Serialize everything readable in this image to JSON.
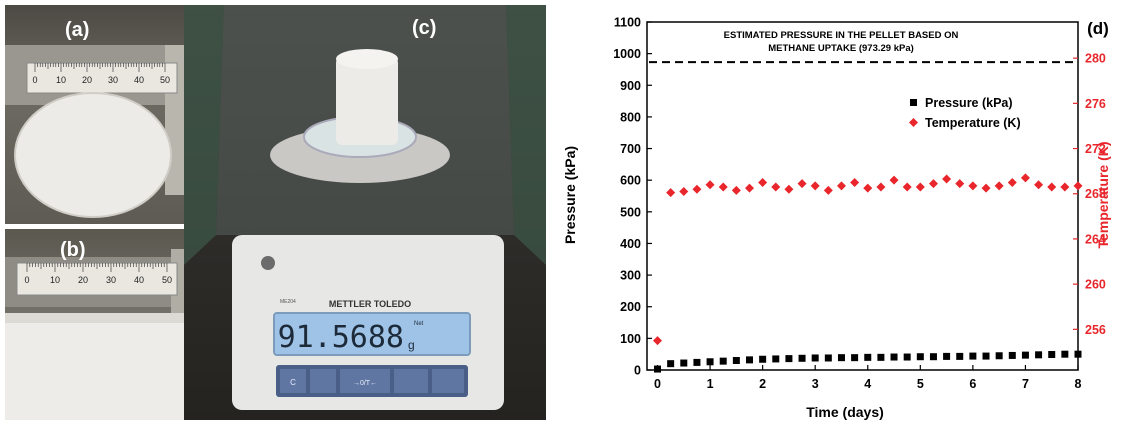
{
  "panels": {
    "a": "(a)",
    "b": "(b)",
    "c": "(c)",
    "d": "(d)"
  },
  "photos": {
    "ruler_a_ticks": [
      "0",
      "10",
      "20",
      "30",
      "40",
      "50"
    ],
    "ruler_b_ticks": [
      "0",
      "10",
      "20",
      "30",
      "40",
      "50"
    ],
    "balance_brand": "METTLER TOLEDO",
    "balance_model": "ME204",
    "balance_reading": "91.5688",
    "balance_unit": "g",
    "balance_net": "Net",
    "balance_buttons": [
      "C",
      "",
      "→0/T←",
      "",
      ""
    ],
    "colors": {
      "cylinder": "#ecebe7",
      "display": "#9fc3e6"
    }
  },
  "chart_data": {
    "type": "scatter",
    "title": "ESTIMATED PRESSURE IN THE PELLET BASED ON METHANE UPTAKE (973.29 kPa)",
    "title_lines": [
      "ESTIMATED PRESSURE IN THE PELLET BASED ON",
      "METHANE UPTAKE (973.29 kPa)"
    ],
    "xlabel": "Time (days)",
    "ylabel": "Pressure (kPa)",
    "y2label": "Temperature (K)",
    "xlim": [
      -0.2,
      8
    ],
    "ylim": [
      0,
      1100
    ],
    "y2lim": [
      252.4,
      283.2
    ],
    "xticks": [
      0,
      1,
      2,
      3,
      4,
      5,
      6,
      7,
      8
    ],
    "yticks": [
      0,
      100,
      200,
      300,
      400,
      500,
      600,
      700,
      800,
      900,
      1000,
      1100
    ],
    "y2ticks": [
      256,
      260,
      264,
      268,
      272,
      276,
      280
    ],
    "reference_line": {
      "y": 973.29,
      "style": "dashed",
      "color": "#000000"
    },
    "legend_placement": "top-right",
    "series": [
      {
        "name": "Pressure (kPa)",
        "axis": "left",
        "marker": "square",
        "color": "#000000",
        "x": [
          0,
          0.25,
          0.5,
          0.75,
          1,
          1.25,
          1.5,
          1.75,
          2,
          2.25,
          2.5,
          2.75,
          3,
          3.25,
          3.5,
          3.75,
          4,
          4.25,
          4.5,
          4.75,
          5,
          5.25,
          5.5,
          5.75,
          6,
          6.25,
          6.5,
          6.75,
          7,
          7.25,
          7.5,
          7.75,
          8
        ],
        "y": [
          3,
          20,
          22,
          24,
          26,
          28,
          30,
          32,
          34,
          35,
          36,
          37,
          38,
          38,
          39,
          39,
          40,
          40,
          41,
          41,
          42,
          42,
          43,
          43,
          44,
          44,
          45,
          46,
          47,
          48,
          49,
          50,
          50
        ]
      },
      {
        "name": "Temperature (K)",
        "axis": "right",
        "marker": "diamond",
        "color": "#e8262b",
        "x": [
          0,
          0.25,
          0.5,
          0.75,
          1,
          1.25,
          1.5,
          1.75,
          2,
          2.25,
          2.5,
          2.75,
          3,
          3.25,
          3.5,
          3.75,
          4,
          4.25,
          4.5,
          4.75,
          5,
          5.25,
          5.5,
          5.75,
          6,
          6.25,
          6.5,
          6.75,
          7,
          7.25,
          7.5,
          7.75,
          8
        ],
        "y": [
          255.0,
          268.1,
          268.2,
          268.4,
          268.8,
          268.6,
          268.3,
          268.5,
          269.0,
          268.6,
          268.4,
          268.9,
          268.7,
          268.3,
          268.7,
          269.0,
          268.5,
          268.6,
          269.2,
          268.6,
          268.6,
          268.9,
          269.3,
          268.9,
          268.7,
          268.5,
          268.7,
          269.0,
          269.4,
          268.8,
          268.6,
          268.6,
          268.7
        ]
      }
    ],
    "colors": {
      "pressure": "#000000",
      "temperature": "#e8262b",
      "right_axis": "#e8262b"
    }
  }
}
